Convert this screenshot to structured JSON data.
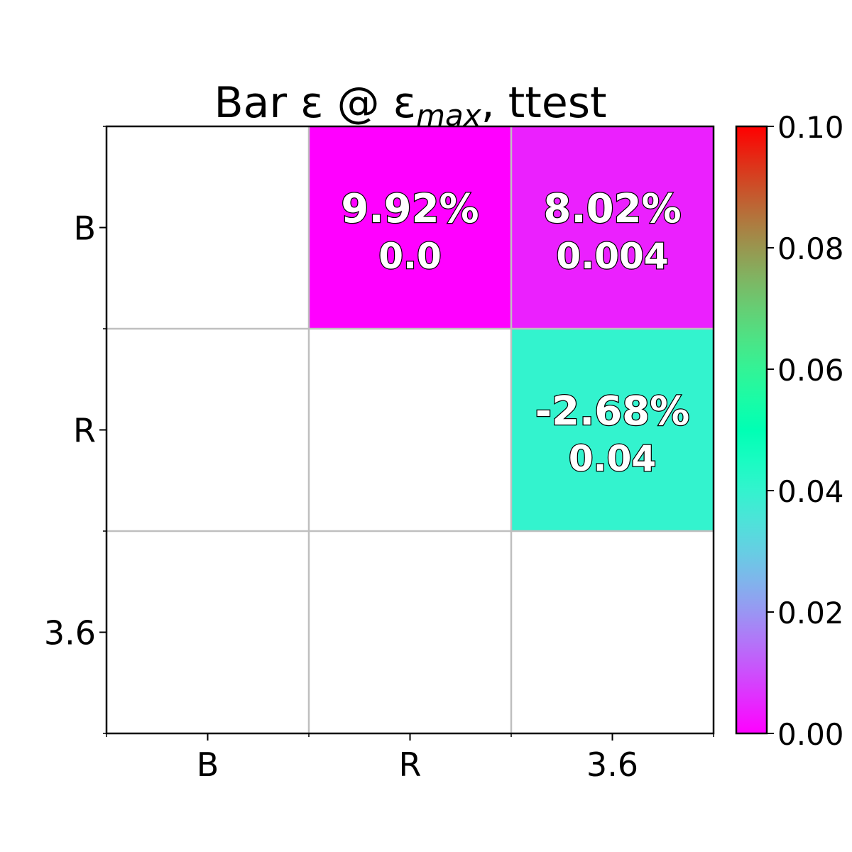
{
  "chart_data": {
    "type": "heatmap",
    "title": "Bar ε @ ε",
    "title_subscript": "max",
    "title_suffix": ", ttest",
    "x_categories": [
      "B",
      "R",
      "3.6"
    ],
    "y_categories": [
      "B",
      "R",
      "3.6"
    ],
    "cells": [
      {
        "row": 0,
        "col": 1,
        "value": 0.0,
        "label_pct": "9.92%",
        "label_p": "0.0"
      },
      {
        "row": 0,
        "col": 2,
        "value": 0.004,
        "label_pct": "8.02%",
        "label_p": "0.004"
      },
      {
        "row": 1,
        "col": 2,
        "value": 0.04,
        "label_pct": "-2.68%",
        "label_p": "0.04"
      }
    ],
    "colorbar": {
      "colormap": "rainbow",
      "range": [
        0.0,
        0.1
      ],
      "ticks": [
        "0.00",
        "0.02",
        "0.04",
        "0.06",
        "0.08",
        "0.10"
      ]
    },
    "grid": true,
    "grid_color": "#bfbfbf"
  }
}
